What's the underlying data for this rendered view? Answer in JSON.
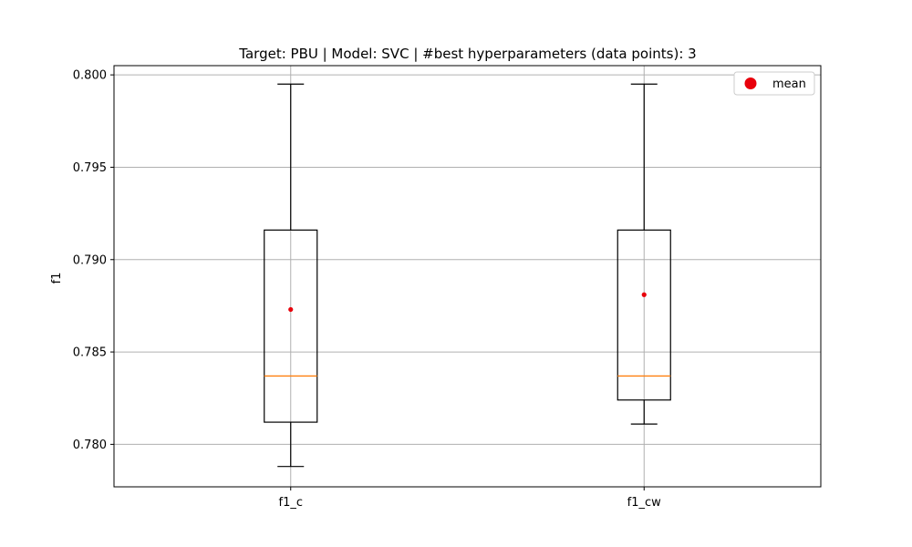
{
  "chart_data": {
    "type": "box",
    "title": "Target: PBU | Model: SVC | #best hyperparameters (data points): 3",
    "xlabel": "",
    "ylabel": "f1",
    "ylim": [
      0.7777,
      0.8005
    ],
    "y_ticks": [
      0.78,
      0.785,
      0.79,
      0.795,
      0.8
    ],
    "y_tick_labels": [
      "0.780",
      "0.785",
      "0.790",
      "0.795",
      "0.800"
    ],
    "grid": true,
    "legend": {
      "position": "top-right",
      "entries": [
        {
          "label": "mean",
          "color": "#e8000b",
          "marker": "circle"
        }
      ]
    },
    "colors": {
      "box": "#000000",
      "median": "#ff7f0e",
      "mean": "#e8000b",
      "grid": "#b0b0b0"
    },
    "categories": [
      "f1_c",
      "f1_cw"
    ],
    "boxes": [
      {
        "name": "f1_c",
        "whisker_low": 0.7788,
        "q1": 0.7812,
        "median": 0.7837,
        "q3": 0.7916,
        "whisker_high": 0.7995,
        "mean": 0.7873
      },
      {
        "name": "f1_cw",
        "whisker_low": 0.7811,
        "q1": 0.7824,
        "median": 0.7837,
        "q3": 0.7916,
        "whisker_high": 0.7995,
        "mean": 0.7881
      }
    ]
  }
}
